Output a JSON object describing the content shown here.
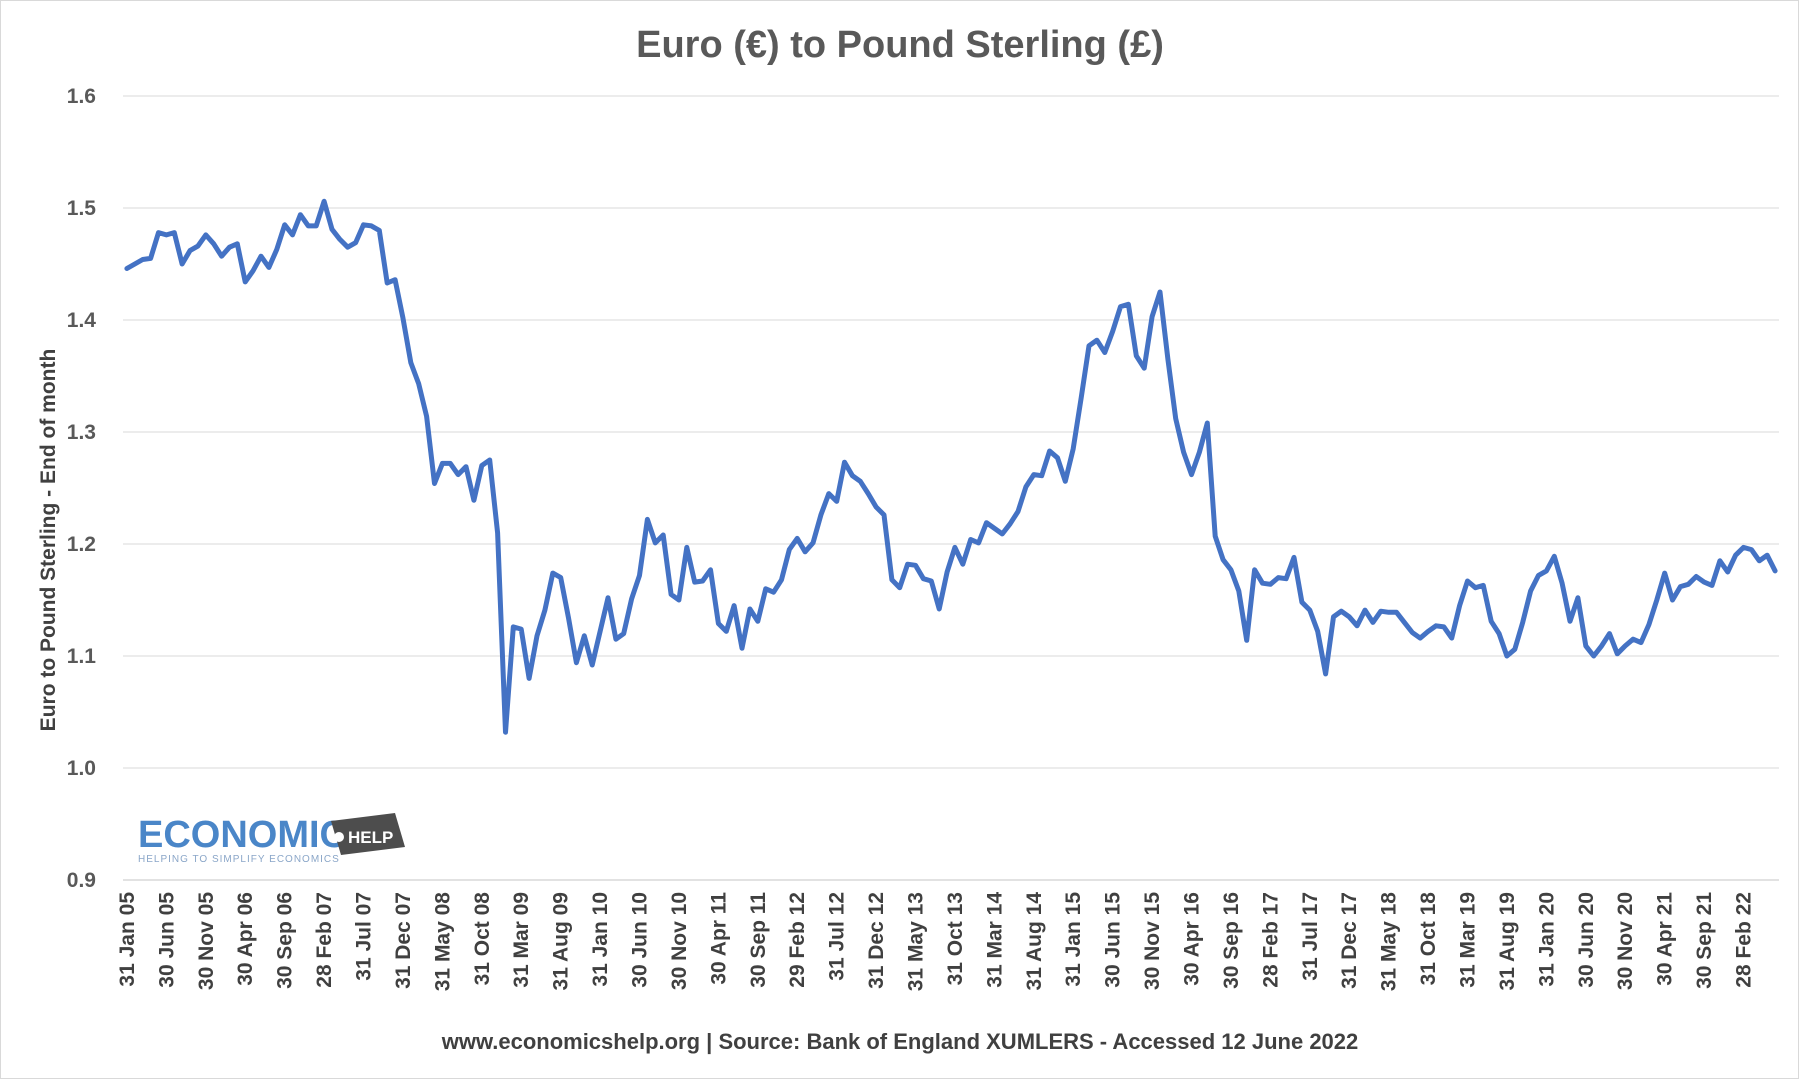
{
  "chart_data": {
    "type": "line",
    "title": "Euro (€) to Pound Sterling (£)",
    "ylabel": "Euro to Pound Sterling - End of month",
    "xlabel": "",
    "ylim": [
      0.9,
      1.6
    ],
    "yticks": [
      "0.9",
      "1.0",
      "1.1",
      "1.2",
      "1.3",
      "1.4",
      "1.5",
      "1.6"
    ],
    "grid": true,
    "legend": "none",
    "line_color": "#4472c4",
    "x_tick_labels": [
      "31 Jan 05",
      "30 Jun 05",
      "30 Nov 05",
      "30 Apr 06",
      "30 Sep 06",
      "28 Feb 07",
      "31 Jul 07",
      "31 Dec 07",
      "31 May 08",
      "31 Oct 08",
      "31 Mar 09",
      "31 Aug 09",
      "31 Jan 10",
      "30 Jun 10",
      "30 Nov 10",
      "30 Apr 11",
      "30 Sep 11",
      "29 Feb 12",
      "31 Jul 12",
      "31 Dec 12",
      "31 May 13",
      "31 Oct 13",
      "31 Mar 14",
      "31 Aug 14",
      "31 Jan 15",
      "30 Jun 15",
      "30 Nov 15",
      "30 Apr 16",
      "30 Sep 16",
      "28 Feb 17",
      "31 Jul 17",
      "31 Dec 17",
      "31 May 18",
      "31 Oct 18",
      "31 Mar 19",
      "31 Aug 19",
      "31 Jan 20",
      "30 Jun 20",
      "30 Nov 20",
      "30 Apr 21",
      "30 Sep 21",
      "28 Feb 22"
    ],
    "x_start": "Jan 2005",
    "x_end": "May 2022",
    "values": [
      1.446,
      1.45,
      1.454,
      1.455,
      1.478,
      1.476,
      1.478,
      1.45,
      1.462,
      1.466,
      1.476,
      1.468,
      1.457,
      1.465,
      1.468,
      1.434,
      1.444,
      1.457,
      1.447,
      1.463,
      1.485,
      1.476,
      1.494,
      1.484,
      1.484,
      1.506,
      1.481,
      1.472,
      1.465,
      1.469,
      1.485,
      1.484,
      1.48,
      1.433,
      1.436,
      1.402,
      1.362,
      1.343,
      1.314,
      1.254,
      1.272,
      1.272,
      1.262,
      1.269,
      1.239,
      1.27,
      1.275,
      1.21,
      1.032,
      1.126,
      1.124,
      1.08,
      1.118,
      1.141,
      1.174,
      1.17,
      1.134,
      1.094,
      1.118,
      1.092,
      1.122,
      1.152,
      1.115,
      1.12,
      1.151,
      1.172,
      1.222,
      1.201,
      1.208,
      1.155,
      1.15,
      1.197,
      1.166,
      1.167,
      1.177,
      1.129,
      1.122,
      1.145,
      1.107,
      1.142,
      1.131,
      1.16,
      1.157,
      1.168,
      1.195,
      1.205,
      1.193,
      1.201,
      1.226,
      1.245,
      1.238,
      1.273,
      1.261,
      1.256,
      1.245,
      1.233,
      1.226,
      1.168,
      1.161,
      1.182,
      1.181,
      1.169,
      1.167,
      1.142,
      1.175,
      1.197,
      1.182,
      1.204,
      1.201,
      1.219,
      1.214,
      1.209,
      1.218,
      1.229,
      1.251,
      1.262,
      1.261,
      1.283,
      1.277,
      1.256,
      1.285,
      1.33,
      1.377,
      1.382,
      1.371,
      1.39,
      1.412,
      1.414,
      1.368,
      1.357,
      1.403,
      1.425,
      1.365,
      1.312,
      1.282,
      1.262,
      1.282,
      1.308,
      1.207,
      1.186,
      1.177,
      1.158,
      1.114,
      1.177,
      1.165,
      1.164,
      1.17,
      1.169,
      1.188,
      1.148,
      1.141,
      1.122,
      1.084,
      1.135,
      1.14,
      1.135,
      1.127,
      1.141,
      1.13,
      1.14,
      1.139,
      1.139,
      1.13,
      1.121,
      1.116,
      1.122,
      1.127,
      1.126,
      1.116,
      1.145,
      1.167,
      1.161,
      1.163,
      1.131,
      1.12,
      1.1,
      1.106,
      1.13,
      1.158,
      1.172,
      1.176,
      1.189,
      1.165,
      1.131,
      1.152,
      1.109,
      1.1,
      1.109,
      1.12,
      1.102,
      1.109,
      1.115,
      1.112,
      1.128,
      1.15,
      1.174,
      1.15,
      1.162,
      1.164,
      1.171,
      1.166,
      1.163,
      1.185,
      1.175,
      1.19,
      1.197,
      1.195,
      1.185,
      1.19,
      1.176
    ]
  },
  "source_text": "www.economicshelp.org | Source: Bank of England XUMLERS - Accessed 12 June 2022",
  "logo": {
    "main": "ECONOMICS",
    "tag": "HELP",
    "sub": "HELPING TO SIMPLIFY ECONOMICS"
  }
}
